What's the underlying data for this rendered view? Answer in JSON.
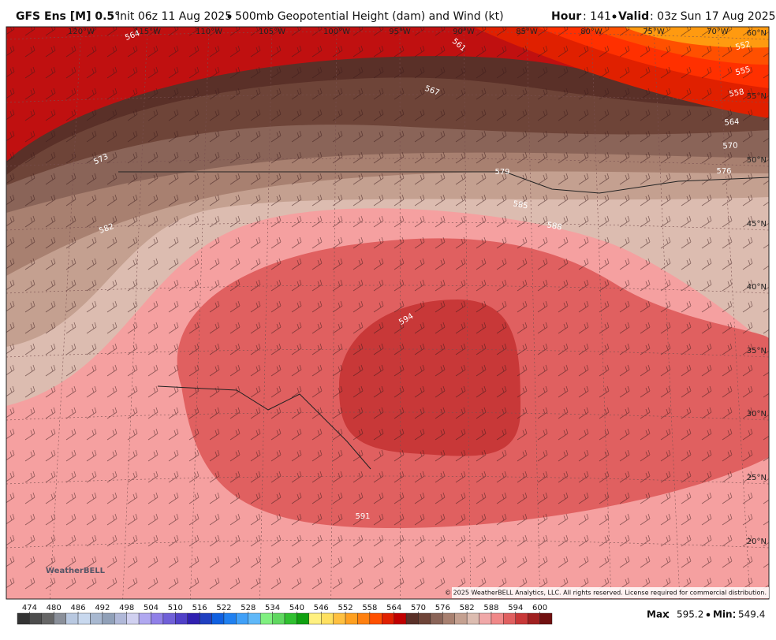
{
  "header": {
    "model": "GFS Ens [M] 0.5°",
    "init": "Init 06z 11 Aug 2025",
    "product": "500mb Geopotential Height (dam) and Wind (kt)",
    "hour_label": "Hour",
    "hour": ": 141",
    "valid_label": "Valid",
    "valid": ": 03z Sun 17 Aug 2025"
  },
  "map": {
    "longitude_labels": [
      "120°W",
      "115°W",
      "110°W",
      "105°W",
      "100°W",
      "95°W",
      "90°W",
      "85°W",
      "80°W",
      "75°W",
      "70°W"
    ],
    "latitude_labels": [
      "60°N",
      "55°N",
      "50°N",
      "45°N",
      "40°N",
      "35°N",
      "30°N",
      "25°N",
      "20°N"
    ],
    "contour_labels": [
      564,
      561,
      567,
      573,
      582,
      594,
      552,
      555,
      558,
      564,
      570,
      576,
      579,
      585,
      588,
      591
    ],
    "logo": "WeatherBELL",
    "copyright": "© 2025 WeatherBELL Analytics, LLC. All rights reserved. License required for commercial distribution."
  },
  "colorbar": {
    "ticks": [
      474,
      480,
      486,
      492,
      498,
      504,
      510,
      516,
      522,
      528,
      534,
      540,
      546,
      552,
      558,
      564,
      570,
      576,
      582,
      588,
      594,
      600
    ],
    "colors": [
      "#333333",
      "#4d4d4d",
      "#666666",
      "#8a8f99",
      "#b8c8e0",
      "#c8d8ee",
      "#a8b8d0",
      "#90a0b8",
      "#b0b8d8",
      "#d0d0f0",
      "#b0a8f0",
      "#9080e8",
      "#7060d8",
      "#5040c8",
      "#3020b0",
      "#2040c0",
      "#1060e0",
      "#2080f0",
      "#40a0f8",
      "#60b8f8",
      "#80f080",
      "#60d860",
      "#30c030",
      "#10a010",
      "#fff080",
      "#ffe060",
      "#ffc040",
      "#ffa020",
      "#ff8010",
      "#ff5000",
      "#e02000",
      "#c00000",
      "#5a3028",
      "#6e4438",
      "#8a6458",
      "#a88070",
      "#c4a090",
      "#dcbcb0",
      "#f0a8a8",
      "#f08888",
      "#e06060",
      "#c83838",
      "#a02020",
      "#701010"
    ]
  },
  "stats": {
    "max_label": "Max",
    "max": 595.2,
    "min_label": "Min",
    "min": 549.4
  }
}
